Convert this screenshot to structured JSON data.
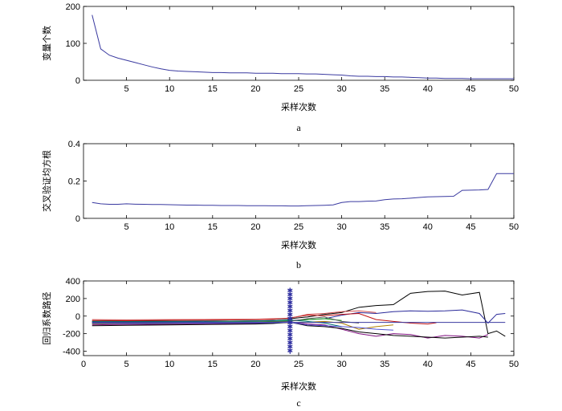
{
  "chart_data": [
    {
      "type": "line",
      "panel_label": "a",
      "xlabel": "采样次数",
      "ylabel": "变量个数",
      "xlim": [
        0,
        50
      ],
      "ylim": [
        0,
        200
      ],
      "xticks": [
        5,
        10,
        15,
        20,
        25,
        30,
        35,
        40,
        45,
        50
      ],
      "yticks": [
        0,
        100,
        200
      ],
      "series": [
        {
          "color": "#3a3aa0",
          "x": [
            1,
            2,
            3,
            4,
            5,
            6,
            7,
            8,
            9,
            10,
            11,
            12,
            13,
            14,
            15,
            16,
            17,
            18,
            19,
            20,
            21,
            22,
            23,
            24,
            25,
            26,
            27,
            28,
            29,
            30,
            31,
            32,
            33,
            34,
            35,
            36,
            37,
            38,
            39,
            40,
            41,
            42,
            43,
            44,
            45,
            46,
            47,
            48,
            49,
            50
          ],
          "y": [
            177,
            85,
            68,
            60,
            54,
            48,
            42,
            36,
            31,
            27,
            25,
            24,
            23,
            22,
            21,
            21,
            20,
            20,
            20,
            19,
            19,
            19,
            18,
            18,
            18,
            17,
            17,
            16,
            15,
            14,
            12,
            11,
            11,
            10,
            10,
            9,
            9,
            8,
            7,
            6,
            6,
            5,
            5,
            5,
            4,
            4,
            4,
            4,
            4,
            4
          ]
        }
      ]
    },
    {
      "type": "line",
      "panel_label": "b",
      "xlabel": "采样次数",
      "ylabel": "交叉验证均方根",
      "xlim": [
        0,
        50
      ],
      "ylim": [
        0,
        0.4
      ],
      "xticks": [
        5,
        10,
        15,
        20,
        25,
        30,
        35,
        40,
        45,
        50
      ],
      "yticks": [
        0,
        0.2,
        0.4
      ],
      "series": [
        {
          "color": "#3a3aa0",
          "x": [
            1,
            2,
            3,
            4,
            5,
            6,
            7,
            8,
            9,
            10,
            11,
            12,
            13,
            14,
            15,
            16,
            17,
            18,
            19,
            20,
            21,
            22,
            23,
            24,
            25,
            26,
            27,
            28,
            29,
            30,
            31,
            32,
            33,
            34,
            35,
            36,
            37,
            38,
            39,
            40,
            41,
            42,
            43,
            44,
            45,
            46,
            47,
            48,
            49,
            50
          ],
          "y": [
            0.085,
            0.078,
            0.075,
            0.075,
            0.078,
            0.076,
            0.075,
            0.074,
            0.074,
            0.073,
            0.072,
            0.071,
            0.071,
            0.07,
            0.07,
            0.069,
            0.069,
            0.069,
            0.068,
            0.068,
            0.068,
            0.067,
            0.067,
            0.066,
            0.066,
            0.068,
            0.069,
            0.07,
            0.072,
            0.085,
            0.09,
            0.09,
            0.092,
            0.093,
            0.1,
            0.104,
            0.105,
            0.108,
            0.112,
            0.115,
            0.116,
            0.117,
            0.118,
            0.15,
            0.151,
            0.152,
            0.155,
            0.24,
            0.24,
            0.24
          ]
        }
      ]
    },
    {
      "type": "line",
      "panel_label": "c",
      "xlabel": "采样次数",
      "ylabel": "回归系数路径",
      "xlim": [
        0,
        50
      ],
      "ylim": [
        -450,
        400
      ],
      "xticks": [
        0,
        5,
        10,
        15,
        20,
        25,
        30,
        35,
        40,
        45,
        50
      ],
      "yticks": [
        -400,
        -200,
        0,
        200,
        400
      ],
      "marker_line_x": 24,
      "series": [
        {
          "color": "#000000",
          "x": [
            1,
            5,
            10,
            15,
            20,
            22,
            24,
            26,
            28,
            30,
            32,
            34,
            36,
            38,
            40,
            42,
            44,
            46,
            47,
            48,
            49
          ],
          "y": [
            -60,
            -55,
            -50,
            -45,
            -40,
            -35,
            -30,
            -10,
            20,
            40,
            100,
            120,
            130,
            260,
            280,
            285,
            240,
            270,
            -200,
            -170,
            -230
          ]
        },
        {
          "color": "#2a2a9a",
          "x": [
            1,
            5,
            10,
            15,
            20,
            22,
            24,
            26,
            28,
            30,
            32,
            34,
            36,
            38,
            40,
            42,
            44,
            46,
            47,
            48,
            49
          ],
          "y": [
            -70,
            -68,
            -65,
            -60,
            -55,
            -52,
            -50,
            -40,
            -30,
            10,
            40,
            30,
            50,
            60,
            55,
            60,
            70,
            30,
            -80,
            20,
            30
          ]
        },
        {
          "color": "#c01010",
          "x": [
            1,
            5,
            10,
            15,
            20,
            22,
            24,
            26,
            28,
            30,
            32,
            34,
            36,
            38,
            40,
            41
          ],
          "y": [
            -50,
            -52,
            -48,
            -45,
            -40,
            -38,
            -20,
            10,
            5,
            20,
            30,
            -40,
            -60,
            -80,
            -90,
            -75
          ]
        },
        {
          "color": "#10a010",
          "x": [
            1,
            5,
            10,
            15,
            20,
            22,
            24,
            26,
            28,
            30
          ],
          "y": [
            -80,
            -78,
            -75,
            -70,
            -65,
            -60,
            -55,
            -40,
            -30,
            -50
          ]
        },
        {
          "color": "#b08000",
          "x": [
            1,
            5,
            10,
            15,
            20,
            22,
            24,
            26,
            28,
            30,
            32,
            34,
            36
          ],
          "y": [
            -90,
            -88,
            -85,
            -82,
            -80,
            -78,
            -75,
            -70,
            -60,
            -80,
            -150,
            -120,
            -100
          ]
        },
        {
          "color": "#801080",
          "x": [
            1,
            5,
            10,
            15,
            20,
            22,
            24,
            26,
            28,
            30,
            32,
            34,
            36,
            38,
            40,
            42,
            44,
            46,
            47
          ],
          "y": [
            -100,
            -95,
            -92,
            -90,
            -85,
            -80,
            -70,
            -90,
            -100,
            -150,
            -200,
            -230,
            -200,
            -210,
            -250,
            -220,
            -230,
            -250,
            -210
          ]
        },
        {
          "color": "#007070",
          "x": [
            1,
            5,
            10,
            15,
            20,
            22,
            24,
            26,
            28,
            30
          ],
          "y": [
            -60,
            -62,
            -60,
            -58,
            -55,
            -50,
            -45,
            -60,
            -80,
            -120
          ]
        },
        {
          "color": "#606060",
          "x": [
            1,
            5,
            10,
            15,
            20,
            22,
            24,
            26,
            28,
            30,
            32
          ],
          "y": [
            -75,
            -74,
            -72,
            -70,
            -68,
            -65,
            -60,
            -30,
            -10,
            -60,
            -80
          ]
        },
        {
          "color": "#000000",
          "x": [
            1,
            5,
            10,
            15,
            20,
            22,
            24,
            26,
            28,
            30,
            32,
            34,
            36,
            38,
            40,
            42,
            44,
            46,
            47
          ],
          "y": [
            -110,
            -105,
            -100,
            -95,
            -90,
            -85,
            -70,
            -110,
            -120,
            -140,
            -180,
            -200,
            -220,
            -230,
            -240,
            -250,
            -240,
            -230,
            -240
          ]
        },
        {
          "color": "#3a3aa0",
          "x": [
            1,
            5,
            10,
            15,
            20,
            22,
            24,
            26,
            28,
            30,
            32,
            34,
            36,
            38,
            40,
            42,
            44,
            46,
            48,
            49
          ],
          "y": [
            -72,
            -72,
            -72,
            -72,
            -72,
            -72,
            -72,
            -72,
            -72,
            -72,
            -72,
            -72,
            -72,
            -72,
            -72,
            -72,
            -72,
            -72,
            -72,
            -72
          ]
        },
        {
          "color": "#d05050",
          "x": [
            1,
            5,
            10,
            15,
            20,
            22,
            24,
            26,
            28,
            30,
            32,
            34
          ],
          "y": [
            -40,
            -42,
            -40,
            -38,
            -35,
            -30,
            -25,
            20,
            30,
            50,
            60,
            40
          ]
        },
        {
          "color": "#5050d0",
          "x": [
            1,
            5,
            10,
            15,
            20,
            22,
            24,
            26,
            28,
            30,
            32,
            34,
            36
          ],
          "y": [
            -85,
            -84,
            -82,
            -80,
            -78,
            -75,
            -70,
            -100,
            -110,
            -120,
            -130,
            -150,
            -160
          ]
        }
      ]
    }
  ]
}
